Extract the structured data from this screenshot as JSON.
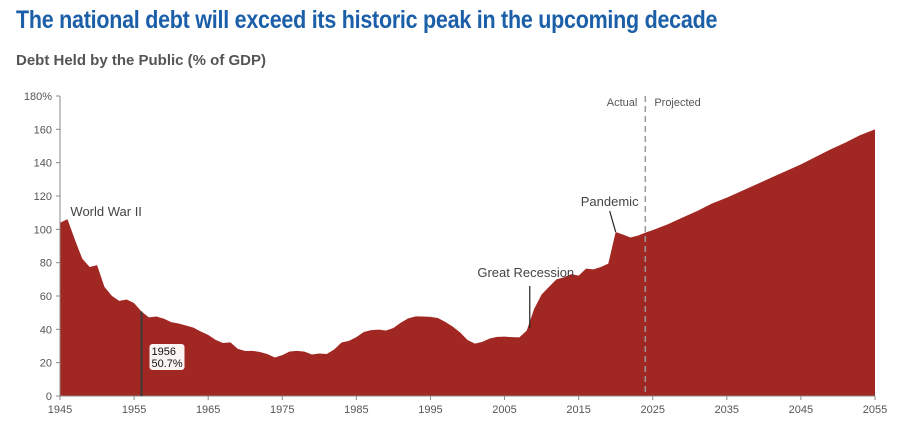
{
  "title": "The national debt will exceed its historic peak in the upcoming decade",
  "subtitle": "Debt Held by the Public (% of GDP)",
  "colors": {
    "title": "#1b5fa8",
    "area": "#a12822",
    "axis": "#888888",
    "divider": "#999999",
    "marker": "#3a3a3a"
  },
  "chart_data": {
    "type": "area",
    "title": "The national debt will exceed its historic peak in the upcoming decade",
    "subtitle": "Debt Held by the Public (% of GDP)",
    "xlabel": "",
    "ylabel": "Debt Held by the Public (% of GDP)",
    "xlim": [
      1945,
      2055
    ],
    "ylim": [
      0,
      180
    ],
    "x_ticks": [
      "1945",
      "1955",
      "1965",
      "1975",
      "1985",
      "1995",
      "2005",
      "2015",
      "2025",
      "2035",
      "2045",
      "2055"
    ],
    "y_ticks": [
      "180%",
      "160",
      "140",
      "120",
      "100",
      "80",
      "60",
      "40",
      "20",
      "0"
    ],
    "grid": false,
    "series": [
      {
        "name": "Debt Held by the Public",
        "x": [
          1945,
          1946,
          1947,
          1948,
          1949,
          1950,
          1951,
          1952,
          1953,
          1954,
          1955,
          1956,
          1957,
          1958,
          1959,
          1960,
          1961,
          1962,
          1963,
          1964,
          1965,
          1966,
          1967,
          1968,
          1969,
          1970,
          1971,
          1972,
          1973,
          1974,
          1975,
          1976,
          1977,
          1978,
          1979,
          1980,
          1981,
          1982,
          1983,
          1984,
          1985,
          1986,
          1987,
          1988,
          1989,
          1990,
          1991,
          1992,
          1993,
          1994,
          1995,
          1996,
          1997,
          1998,
          1999,
          2000,
          2001,
          2002,
          2003,
          2004,
          2005,
          2006,
          2007,
          2008,
          2009,
          2010,
          2011,
          2012,
          2013,
          2014,
          2015,
          2016,
          2017,
          2018,
          2019,
          2020,
          2021,
          2022,
          2023,
          2024,
          2025,
          2027,
          2029,
          2031,
          2033,
          2035,
          2037,
          2039,
          2041,
          2043,
          2045,
          2047,
          2049,
          2051,
          2053,
          2055
        ],
        "values": [
          103.9,
          106.1,
          93.9,
          82.4,
          77.4,
          78.5,
          65.5,
          60.1,
          57.1,
          57.9,
          55.7,
          50.7,
          47.2,
          47.7,
          46.4,
          44.3,
          43.5,
          42.3,
          41.0,
          38.7,
          36.7,
          33.7,
          31.8,
          32.2,
          28.3,
          27.0,
          27.1,
          26.4,
          25.1,
          23.1,
          24.5,
          26.7,
          27.1,
          26.6,
          24.9,
          25.5,
          25.2,
          27.9,
          32.1,
          33.1,
          35.3,
          38.4,
          39.5,
          39.8,
          39.3,
          40.8,
          44.0,
          46.6,
          47.8,
          47.7,
          47.5,
          46.8,
          44.5,
          41.6,
          38.2,
          33.6,
          31.4,
          32.5,
          34.5,
          35.5,
          35.6,
          35.3,
          35.2,
          39.3,
          52.3,
          60.9,
          65.5,
          70.0,
          71.2,
          73.1,
          72.2,
          76.4,
          76.0,
          77.4,
          79.4,
          98.4,
          96.8,
          95.1,
          96.2,
          98.0,
          99.5,
          103.0,
          107.0,
          111.0,
          115.5,
          119.0,
          123.0,
          127.0,
          131.0,
          135.0,
          139.0,
          143.5,
          148.0,
          152.0,
          156.5,
          160.0
        ]
      }
    ],
    "annotations": [
      {
        "label": "World War II",
        "year": 1946
      },
      {
        "label": "Great Recession",
        "year": 2008
      },
      {
        "label": "Pandemic",
        "year": 2020
      }
    ],
    "callout": {
      "year": "1956",
      "value": "50.7%"
    },
    "divider": {
      "year": 2024,
      "left_label": "Actual",
      "right_label": "Projected"
    }
  }
}
